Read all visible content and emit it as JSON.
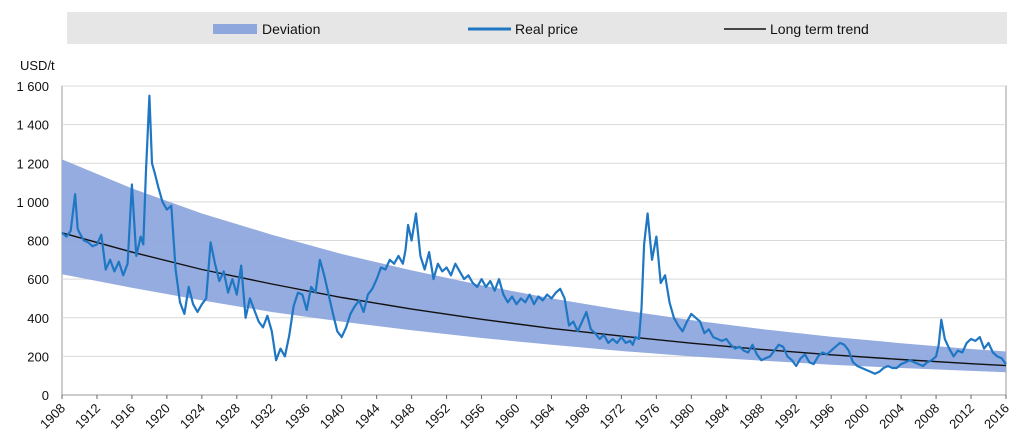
{
  "chart_data": {
    "type": "line",
    "title": "",
    "xlabel": "",
    "ylabel": "USD/t",
    "xlim": [
      1908,
      2016
    ],
    "ylim": [
      0,
      1600
    ],
    "xticks": [
      1908,
      1912,
      1916,
      1920,
      1924,
      1928,
      1932,
      1936,
      1940,
      1944,
      1948,
      1952,
      1956,
      1960,
      1964,
      1968,
      1972,
      1976,
      1980,
      1984,
      1988,
      1992,
      1996,
      2000,
      2004,
      2008,
      2012,
      2016
    ],
    "yticks": [
      0,
      200,
      400,
      600,
      800,
      1000,
      1200,
      1400,
      1600
    ],
    "ytick_labels": [
      "0",
      "200",
      "400",
      "600",
      "800",
      "1 000",
      "1 200",
      "1 400",
      "1 600"
    ],
    "grid": "horizontal",
    "legend_position": "top",
    "colors": {
      "band": "#8ea8dd",
      "price": "#1f77c4",
      "trend": "#111111",
      "legend_bg": "#e6e6e6"
    },
    "legend": [
      {
        "name": "Deviation",
        "kind": "band"
      },
      {
        "name": "Real price",
        "kind": "price"
      },
      {
        "name": "Long term trend",
        "kind": "trend"
      }
    ],
    "series": [
      {
        "name": "Long term trend",
        "x": [
          1908,
          1916,
          1924,
          1932,
          1940,
          1948,
          1956,
          1964,
          1972,
          1980,
          1988,
          1996,
          2004,
          2012,
          2016
        ],
        "values": [
          840,
          740,
          650,
          575,
          505,
          445,
          392,
          345,
          305,
          268,
          236,
          208,
          184,
          162,
          152
        ]
      },
      {
        "name": "Deviation",
        "x": [
          1908,
          1916,
          1924,
          1932,
          1940,
          1948,
          1956,
          1964,
          1972,
          1980,
          1988,
          1996,
          2004,
          2012,
          2016
        ],
        "upper": [
          1220,
          1070,
          940,
          830,
          730,
          645,
          568,
          500,
          440,
          388,
          342,
          302,
          268,
          238,
          225
        ],
        "lower": [
          625,
          555,
          490,
          430,
          380,
          335,
          295,
          260,
          228,
          200,
          178,
          157,
          140,
          125,
          118
        ]
      },
      {
        "name": "Real price",
        "x": [
          1908,
          1908.5,
          1909,
          1909.5,
          1909.8,
          1910,
          1910.5,
          1911,
          1911.5,
          1912,
          1912.5,
          1913,
          1913.5,
          1914,
          1914.5,
          1915,
          1915.5,
          1916,
          1916.5,
          1917,
          1917.3,
          1917.6,
          1918,
          1918.3,
          1918.6,
          1919,
          1919.5,
          1920,
          1920.5,
          1921,
          1921.5,
          1922,
          1922.5,
          1923,
          1923.5,
          1924,
          1924.5,
          1925,
          1925.5,
          1926,
          1926.5,
          1927,
          1927.5,
          1928,
          1928.5,
          1929,
          1929.5,
          1930,
          1930.5,
          1931,
          1931.5,
          1932,
          1932.5,
          1933,
          1933.5,
          1934,
          1934.5,
          1935,
          1935.5,
          1936,
          1936.5,
          1937,
          1937.5,
          1938,
          1938.5,
          1939,
          1939.5,
          1940,
          1940.5,
          1941,
          1941.5,
          1942,
          1942.5,
          1943,
          1943.5,
          1944,
          1944.5,
          1945,
          1945.5,
          1946,
          1946.5,
          1947,
          1947.3,
          1947.6,
          1948,
          1948.5,
          1949,
          1949.5,
          1950,
          1950.5,
          1951,
          1951.5,
          1952,
          1952.5,
          1953,
          1953.5,
          1954,
          1954.5,
          1955,
          1955.5,
          1956,
          1956.5,
          1957,
          1957.5,
          1958,
          1958.5,
          1959,
          1959.5,
          1960,
          1960.5,
          1961,
          1961.5,
          1962,
          1962.5,
          1963,
          1963.5,
          1964,
          1964.5,
          1965,
          1965.5,
          1966,
          1966.5,
          1967,
          1967.5,
          1968,
          1968.5,
          1969,
          1969.5,
          1970,
          1970.5,
          1971,
          1971.5,
          1972,
          1972.5,
          1973,
          1973.3,
          1973.6,
          1974,
          1974.3,
          1974.6,
          1975,
          1975.5,
          1976,
          1976.5,
          1977,
          1977.5,
          1978,
          1978.5,
          1979,
          1979.5,
          1980,
          1980.5,
          1981,
          1981.5,
          1982,
          1982.5,
          1983,
          1983.5,
          1984,
          1984.5,
          1985,
          1985.5,
          1986,
          1986.5,
          1987,
          1987.5,
          1988,
          1988.5,
          1989,
          1989.5,
          1990,
          1990.5,
          1991,
          1991.5,
          1992,
          1992.5,
          1993,
          1993.5,
          1994,
          1994.5,
          1995,
          1995.5,
          1996,
          1996.5,
          1997,
          1997.5,
          1998,
          1998.5,
          1999,
          1999.5,
          2000,
          2000.5,
          2001,
          2001.5,
          2002,
          2002.5,
          2003,
          2003.5,
          2004,
          2004.5,
          2005,
          2005.5,
          2006,
          2006.5,
          2007,
          2007.5,
          2008,
          2008.3,
          2008.6,
          2009,
          2009.5,
          2010,
          2010.5,
          2011,
          2011.5,
          2012,
          2012.5,
          2013,
          2013.5,
          2014,
          2014.5,
          2015,
          2015.5,
          2016
        ],
        "values": [
          840,
          820,
          850,
          1040,
          860,
          840,
          800,
          790,
          770,
          780,
          830,
          650,
          700,
          640,
          690,
          620,
          680,
          1090,
          720,
          820,
          780,
          1150,
          1550,
          1200,
          1150,
          1080,
          1000,
          960,
          980,
          650,
          480,
          420,
          560,
          470,
          430,
          470,
          500,
          790,
          680,
          590,
          640,
          530,
          600,
          520,
          670,
          400,
          500,
          440,
          380,
          350,
          410,
          330,
          180,
          240,
          200,
          310,
          460,
          530,
          520,
          440,
          560,
          530,
          700,
          620,
          520,
          420,
          330,
          300,
          350,
          420,
          460,
          490,
          430,
          520,
          550,
          600,
          660,
          650,
          700,
          680,
          720,
          680,
          750,
          880,
          800,
          940,
          720,
          650,
          740,
          600,
          680,
          640,
          660,
          620,
          680,
          640,
          600,
          620,
          580,
          560,
          600,
          560,
          590,
          540,
          600,
          520,
          480,
          510,
          470,
          500,
          480,
          520,
          470,
          510,
          490,
          520,
          500,
          530,
          550,
          500,
          360,
          380,
          330,
          380,
          430,
          340,
          320,
          290,
          310,
          270,
          290,
          270,
          300,
          270,
          280,
          260,
          300,
          290,
          450,
          780,
          940,
          700,
          820,
          580,
          620,
          480,
          400,
          360,
          330,
          380,
          420,
          400,
          380,
          320,
          340,
          300,
          290,
          280,
          290,
          260,
          240,
          250,
          230,
          220,
          260,
          210,
          180,
          190,
          200,
          230,
          260,
          250,
          200,
          180,
          150,
          190,
          210,
          170,
          160,
          200,
          220,
          210,
          230,
          250,
          270,
          260,
          230,
          170,
          150,
          140,
          130,
          120,
          110,
          120,
          140,
          150,
          140,
          140,
          160,
          170,
          180,
          170,
          160,
          150,
          170,
          180,
          200,
          260,
          390,
          290,
          240,
          200,
          230,
          220,
          270,
          290,
          280,
          300,
          240,
          270,
          220,
          200,
          190,
          160
        ]
      }
    ]
  }
}
